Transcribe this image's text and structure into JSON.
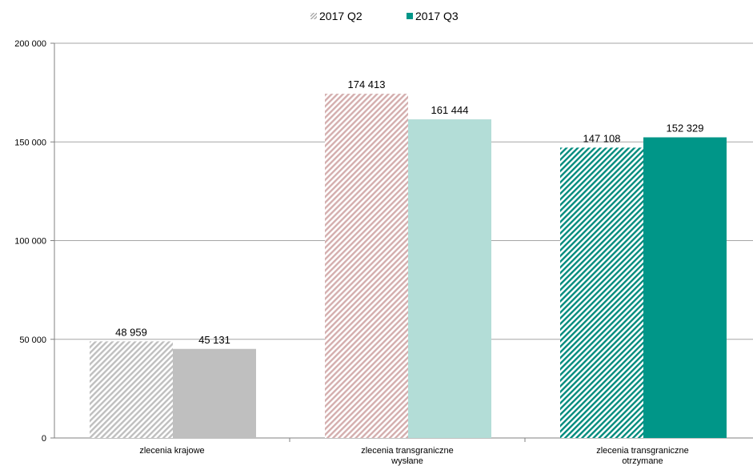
{
  "chart_data": {
    "type": "bar",
    "title": "",
    "xlabel": "",
    "ylabel": "",
    "ylim": [
      0,
      200000
    ],
    "yticks": [
      {
        "value": 0,
        "label": "0"
      },
      {
        "value": 50000,
        "label": "50 000"
      },
      {
        "value": 100000,
        "label": "100 000"
      },
      {
        "value": 150000,
        "label": "150 000"
      },
      {
        "value": 200000,
        "label": "200 000"
      }
    ],
    "grid": true,
    "legend_position": "top",
    "categories": [
      {
        "line1": "zlecenia krajowe",
        "line2": ""
      },
      {
        "line1": "zlecenia transgraniczne",
        "line2": "wysłane"
      },
      {
        "line1": "zlecenia transgraniczne",
        "line2": "otrzymane"
      }
    ],
    "series": [
      {
        "name": "2017 Q2",
        "values": [
          48959,
          174413,
          147108
        ],
        "value_labels": [
          "48 959",
          "174 413",
          "147 108"
        ],
        "style": "hatched"
      },
      {
        "name": "2017 Q3",
        "values": [
          45131,
          161444,
          152329
        ],
        "value_labels": [
          "45 131",
          "161 444",
          "152 329"
        ],
        "style": "solid"
      }
    ],
    "category_colors": {
      "solid": [
        "#bfbfbf",
        "#b3ddd7",
        "#009688"
      ],
      "hatch": [
        "#bfbfbf",
        "#d4aeae",
        "#008b7d"
      ]
    }
  }
}
